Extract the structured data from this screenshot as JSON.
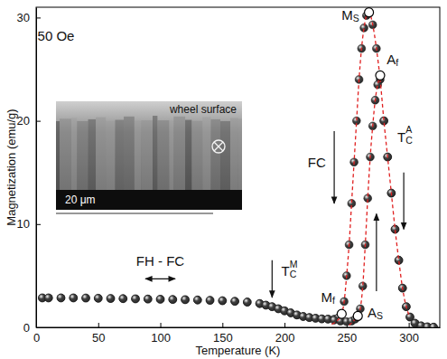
{
  "chart_data": {
    "type": "scatter",
    "x_label": "Temperature (K)",
    "y_label": "Magnetization (emu/g)",
    "xlim": [
      0,
      325
    ],
    "ylim": [
      0,
      31
    ],
    "xticks": [
      0,
      50,
      100,
      150,
      200,
      250,
      300
    ],
    "yticks": [
      0,
      10,
      20,
      30
    ],
    "grid": false,
    "series": [
      {
        "type": "scatter",
        "marker": "sphere",
        "line_style": "none",
        "color": "#2a2a2a",
        "x": [
          5,
          10,
          20,
          30,
          40,
          50,
          60,
          70,
          80,
          90,
          100,
          110,
          120,
          130,
          140,
          150,
          160,
          170,
          180,
          185,
          190,
          195,
          200,
          205,
          210,
          215,
          220,
          225,
          230,
          235,
          240,
          243,
          246,
          248,
          250,
          252,
          254,
          256,
          258,
          260,
          262,
          264,
          266,
          268,
          271,
          274,
          277,
          280,
          283,
          286,
          289,
          292,
          295,
          298,
          301,
          305,
          310,
          315,
          320
        ],
        "values": [
          2.85,
          2.85,
          2.85,
          2.85,
          2.84,
          2.82,
          2.8,
          2.78,
          2.76,
          2.74,
          2.72,
          2.7,
          2.68,
          2.65,
          2.62,
          2.58,
          2.52,
          2.45,
          2.3,
          2.15,
          2.0,
          1.8,
          1.6,
          1.4,
          1.2,
          1.05,
          0.95,
          0.88,
          0.82,
          0.8,
          0.8,
          0.9,
          1.3,
          2.5,
          5,
          8,
          12,
          16,
          20,
          24,
          27,
          29,
          30.2,
          30.5,
          29.3,
          27,
          24,
          20,
          16.5,
          13,
          9.5,
          6.5,
          3.8,
          2,
          1,
          0.4,
          0.15,
          0.05,
          0.02
        ]
      },
      {
        "type": "scatter",
        "marker": "sphere",
        "line_style": "none",
        "color": "#2a2a2a",
        "x": [
          5,
          10,
          20,
          30,
          40,
          50,
          60,
          70,
          80,
          90,
          100,
          110,
          120,
          130,
          140,
          150,
          160,
          170,
          180,
          185,
          190,
          195,
          200,
          205,
          210,
          215,
          220,
          225,
          230,
          235,
          240,
          245,
          250,
          254,
          257,
          259,
          261,
          263,
          265,
          267,
          269,
          271,
          273,
          275,
          277,
          280,
          283,
          286,
          289,
          292,
          295,
          298,
          301,
          305,
          310,
          315,
          320
        ],
        "values": [
          2.85,
          2.85,
          2.85,
          2.85,
          2.84,
          2.82,
          2.8,
          2.78,
          2.76,
          2.74,
          2.72,
          2.7,
          2.68,
          2.65,
          2.62,
          2.58,
          2.52,
          2.45,
          2.3,
          2.15,
          2.0,
          1.8,
          1.6,
          1.4,
          1.2,
          1.05,
          0.95,
          0.88,
          0.82,
          0.8,
          0.7,
          0.6,
          0.55,
          0.6,
          0.8,
          1.1,
          1.8,
          4,
          8,
          12.5,
          16.5,
          19.5,
          22,
          23.5,
          24.4,
          20,
          16.5,
          13,
          9.5,
          6.5,
          3.8,
          2,
          1,
          0.4,
          0.15,
          0.05,
          0.02
        ]
      },
      {
        "type": "line",
        "marker": "none",
        "line_style": "dashed",
        "color": "#e02020",
        "x": [
          238,
          242,
          246,
          248,
          250,
          252,
          254,
          256,
          258,
          260,
          262,
          264,
          266,
          268,
          271,
          274,
          277,
          280,
          283,
          286,
          289,
          292,
          295,
          298,
          301
        ],
        "values": [
          0.3,
          0.6,
          1.3,
          2.5,
          5,
          8,
          12,
          16,
          20,
          24,
          27,
          29,
          30.2,
          30.5,
          29.3,
          27,
          24,
          20,
          16.5,
          13,
          9.5,
          6.5,
          3.8,
          2,
          1
        ]
      },
      {
        "type": "line",
        "marker": "none",
        "line_style": "dashed",
        "color": "#e02020",
        "x": [
          252,
          257,
          259,
          261,
          263,
          265,
          267,
          269,
          271,
          273,
          275,
          277
        ],
        "values": [
          0.2,
          0.8,
          1.1,
          1.8,
          4,
          8,
          12.5,
          16.5,
          19.5,
          22,
          23.5,
          24.4
        ]
      }
    ],
    "marked_points": [
      {
        "x": 268,
        "y": 30.5
      },
      {
        "x": 277,
        "y": 24.4
      },
      {
        "x": 246,
        "y": 1.3
      },
      {
        "x": 259,
        "y": 1.1
      }
    ],
    "annotations": [
      {
        "text": "50 Oe",
        "x": 16,
        "y": 28.3
      },
      {
        "text": "M",
        "sub": "S",
        "x": 253,
        "y": 30.3
      },
      {
        "text": "A",
        "sub": "f",
        "x": 287,
        "y": 26
      },
      {
        "text": "T",
        "sub": "C",
        "sup": "A",
        "x": 297,
        "y": 18.5,
        "arrow": {
          "from": [
            296,
            15
          ],
          "to": [
            296,
            9.5
          ]
        }
      },
      {
        "text": "FC",
        "x": 226,
        "y": 16,
        "arrow": {
          "from": [
            240,
            19
          ],
          "to": [
            240,
            12
          ]
        }
      },
      {
        "text": "M",
        "sub": "f",
        "x": 235,
        "y": 3
      },
      {
        "text": "A",
        "sub": "S",
        "x": 273,
        "y": 1.5,
        "arrow": {
          "from": [
            274,
            3.5
          ],
          "to": [
            274,
            11
          ]
        }
      },
      {
        "text": "T",
        "sub": "C",
        "sup": "M",
        "x": 204,
        "y": 5.5,
        "arrow": {
          "from": [
            190,
            6.5
          ],
          "to": [
            190,
            2.9
          ]
        }
      },
      {
        "text": "FH - FC",
        "x": 100,
        "y": 6.5,
        "arrow": {
          "from": [
            88,
            4.7
          ],
          "to": [
            112,
            4.7
          ],
          "both": true
        }
      }
    ],
    "inset": {
      "top_label": "wheel surface",
      "scale_label": "20 μm"
    }
  }
}
